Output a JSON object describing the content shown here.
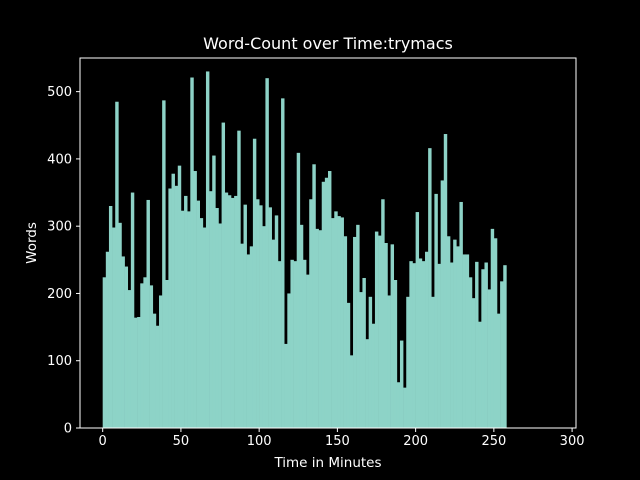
{
  "chart_data": {
    "type": "bar",
    "title": "Word-Count over Time:trymacs",
    "xlabel": "Time in Minutes",
    "ylabel": "Words",
    "xlim": [
      -14.5,
      302.5
    ],
    "ylim": [
      0,
      550
    ],
    "x_ticks": [
      0,
      50,
      100,
      150,
      200,
      250,
      300
    ],
    "y_ticks": [
      0,
      100,
      200,
      300,
      400,
      500
    ],
    "grid": false,
    "colors": {
      "bar": "#8dd3c7",
      "background": "#000000",
      "foreground": "#ffffff"
    },
    "x_start": 0,
    "x_step": 2,
    "values": [
      224,
      262,
      330,
      298,
      485,
      305,
      255,
      240,
      205,
      350,
      164,
      165,
      215,
      224,
      339,
      212,
      170,
      152,
      197,
      487,
      220,
      356,
      378,
      360,
      390,
      323,
      345,
      322,
      521,
      382,
      338,
      312,
      298,
      530,
      352,
      405,
      327,
      304,
      454,
      350,
      346,
      342,
      345,
      442,
      274,
      332,
      258,
      270,
      430,
      340,
      331,
      300,
      520,
      328,
      280,
      316,
      248,
      490,
      125,
      200,
      250,
      248,
      409,
      302,
      250,
      228,
      340,
      392,
      296,
      294,
      366,
      372,
      382,
      312,
      322,
      315,
      313,
      285,
      186,
      108,
      284,
      302,
      202,
      223,
      132,
      195,
      155,
      292,
      286,
      340,
      275,
      197,
      273,
      220,
      68,
      130,
      60,
      195,
      248,
      245,
      321,
      252,
      248,
      262,
      416,
      195,
      348,
      244,
      368,
      437,
      285,
      246,
      280,
      270,
      336,
      258,
      258,
      224,
      193,
      247,
      158,
      236,
      246,
      206,
      296,
      282,
      170,
      218,
      242
    ]
  }
}
